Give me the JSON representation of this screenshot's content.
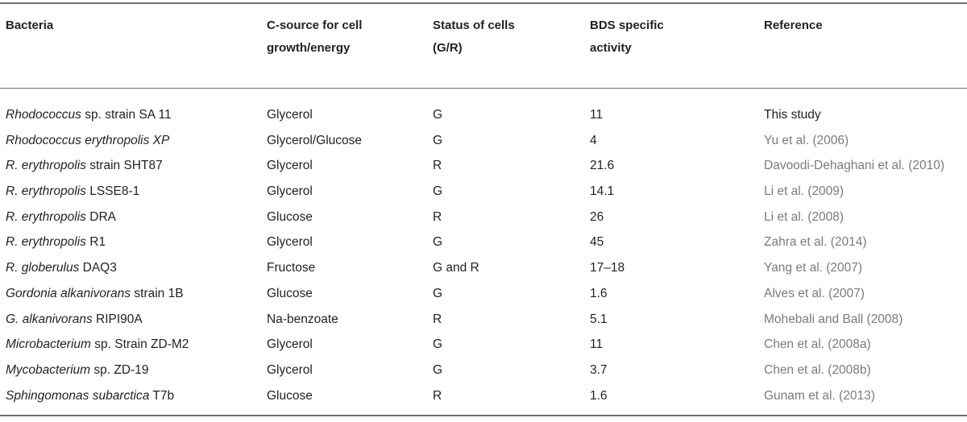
{
  "table": {
    "headers": {
      "bacteria": "Bacteria",
      "c_source_line1": "C-source for cell",
      "c_source_line2": "growth/energy",
      "status_line1": "Status of cells",
      "status_line2": "(G/R)",
      "bds_line1": "BDS specific",
      "bds_line2": "activity",
      "reference": "Reference"
    },
    "rows": [
      {
        "bacteria_italic": "Rhodococcus",
        "bacteria_rest": " sp. strain SA 11",
        "c_source": "Glycerol",
        "status": "G",
        "bds": "11",
        "reference": "This study"
      },
      {
        "bacteria_italic": "Rhodococcus erythropolis XP",
        "bacteria_rest": "",
        "c_source": "Glycerol/Glucose",
        "status": "G",
        "bds": "4",
        "reference": "Yu et al. (2006)"
      },
      {
        "bacteria_italic": "R. erythropolis",
        "bacteria_rest": " strain SHT87",
        "c_source": "Glycerol",
        "status": "R",
        "bds": "21.6",
        "reference": "Davoodi-Dehaghani et al. (2010)"
      },
      {
        "bacteria_italic": "R. erythropolis",
        "bacteria_rest": " LSSE8-1",
        "c_source": "Glycerol",
        "status": "G",
        "bds": "14.1",
        "reference": "Li et al. (2009)"
      },
      {
        "bacteria_italic": "R. erythropolis",
        "bacteria_rest": " DRA",
        "c_source": "Glucose",
        "status": "R",
        "bds": "26",
        "reference": "Li et al. (2008)"
      },
      {
        "bacteria_italic": "R. erythropolis",
        "bacteria_rest": " R1",
        "c_source": "Glycerol",
        "status": "G",
        "bds": "45",
        "reference": "Zahra et al. (2014)"
      },
      {
        "bacteria_italic": "R. globerulus",
        "bacteria_rest": " DAQ3",
        "c_source": "Fructose",
        "status": "G and R",
        "bds": "17–18",
        "reference": "Yang et al. (2007)"
      },
      {
        "bacteria_italic": "Gordonia alkanivorans",
        "bacteria_rest": " strain 1B",
        "c_source": "Glucose",
        "status": "G",
        "bds": "1.6",
        "reference": "Alves et al. (2007)"
      },
      {
        "bacteria_italic": "G. alkanivorans",
        "bacteria_rest": " RIPI90A",
        "c_source": "Na-benzoate",
        "status": "R",
        "bds": "5.1",
        "reference": "Mohebali and Ball (2008)"
      },
      {
        "bacteria_italic": "Microbacterium",
        "bacteria_rest": " sp. Strain ZD-M2",
        "c_source": "Glycerol",
        "status": "G",
        "bds": "11",
        "reference": "Chen et al. (2008a)"
      },
      {
        "bacteria_italic": "Mycobacterium",
        "bacteria_rest": " sp. ZD-19",
        "c_source": "Glycerol",
        "status": "G",
        "bds": "3.7",
        "reference": "Chen et al. (2008b)"
      },
      {
        "bacteria_italic": "Sphingomonas subarctica",
        "bacteria_rest": " T7b",
        "c_source": "Glucose",
        "status": "R",
        "bds": "1.6",
        "reference": "Gunam et al. (2013)"
      }
    ]
  }
}
